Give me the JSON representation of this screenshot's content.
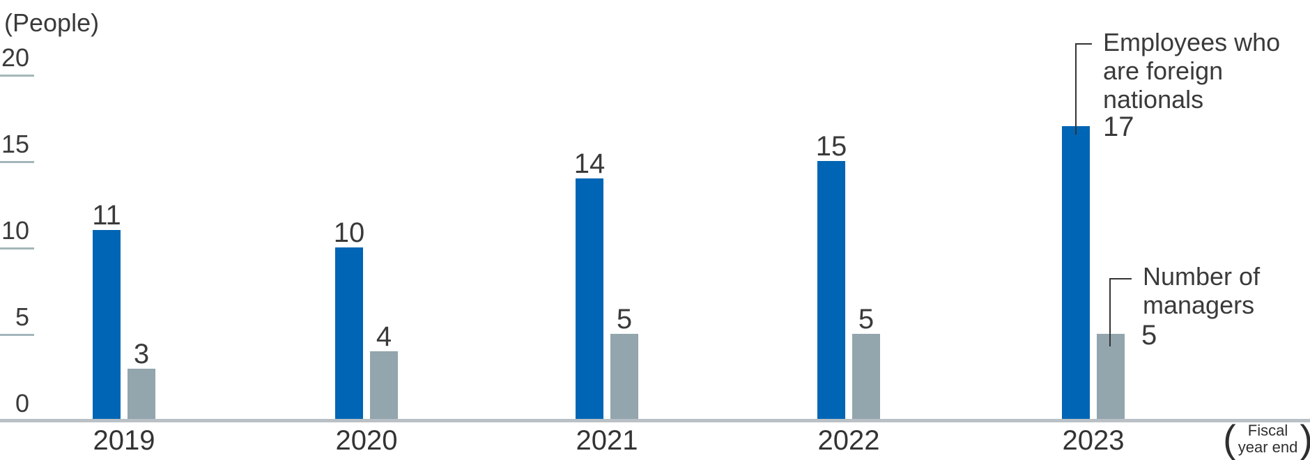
{
  "chart_data": {
    "type": "bar",
    "title": "",
    "unit_label": "(People)",
    "categories": [
      "2019",
      "2020",
      "2021",
      "2022",
      "2023"
    ],
    "series": [
      {
        "name": "Employees who are foreign nationals",
        "values": [
          11,
          10,
          14,
          15,
          17
        ],
        "color": "#0065b4"
      },
      {
        "name": "Number of managers",
        "values": [
          3,
          4,
          5,
          5,
          5
        ],
        "color": "#93a5ad"
      }
    ],
    "ylim": [
      0,
      20
    ],
    "yticks": [
      0,
      5,
      10,
      15,
      20
    ],
    "grid": false,
    "legend_position": "right-annotations",
    "x_axis_note": {
      "line1": "Fiscal",
      "line2": "year end",
      "paren_open": "(",
      "paren_close": ")"
    }
  },
  "colors": {
    "bar_blue": "#0065b4",
    "bar_gray": "#93a5ad",
    "tick_line": "#a4b6ba",
    "axis_line": "#b9c0c6",
    "text": "#3a3a3a",
    "connector": "#333333"
  }
}
